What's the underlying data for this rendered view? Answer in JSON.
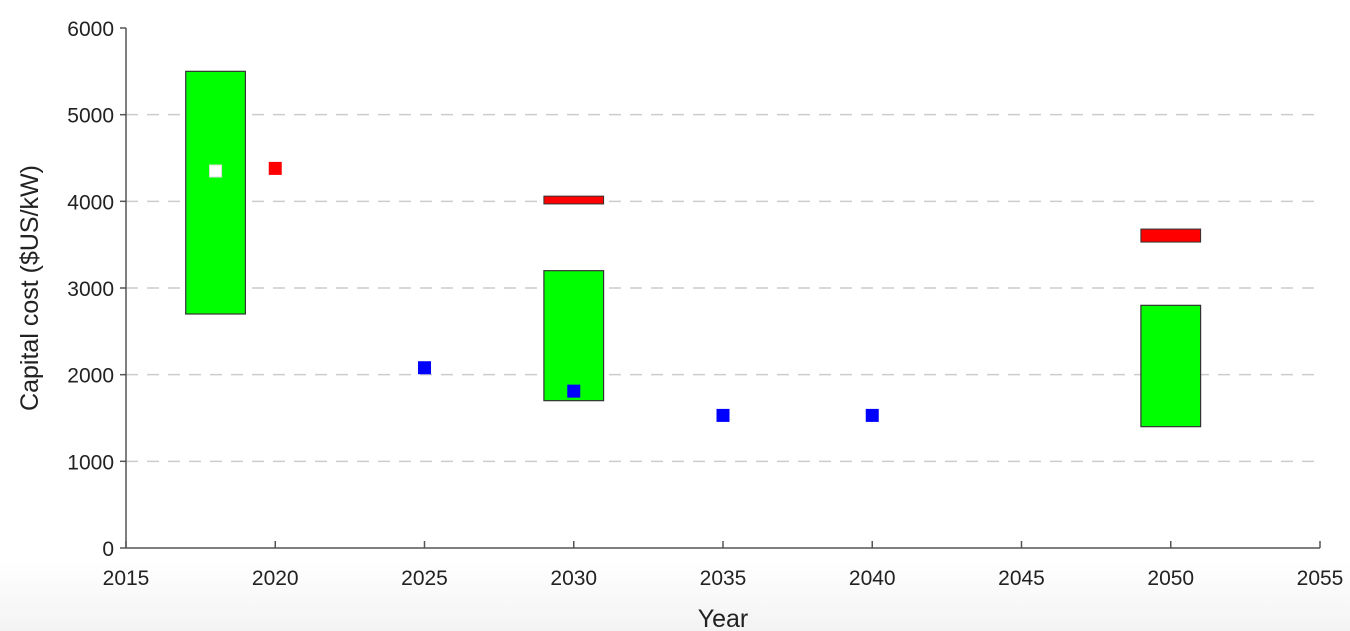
{
  "chart_data": {
    "type": "scatter",
    "title": "",
    "xlabel": "Year",
    "ylabel": "Capital cost ($US/kW)",
    "xlim": [
      2015,
      2055
    ],
    "ylim": [
      0,
      6000
    ],
    "x_ticks": [
      2015,
      2020,
      2025,
      2030,
      2035,
      2040,
      2045,
      2050,
      2055
    ],
    "y_ticks": [
      0,
      1000,
      2000,
      3000,
      4000,
      5000,
      6000
    ],
    "grid": "horizontal dashed",
    "colors": {
      "range_box": "#00ff00",
      "red_marker": "#ff0000",
      "blue_marker": "#0000ff",
      "white_marker": "#ffffff",
      "grid": "#cccccc",
      "axis": "#555555"
    },
    "range_boxes": [
      {
        "x_from": 2017,
        "x_to": 2019,
        "low": 2700,
        "high": 5500,
        "color": "#00ff00"
      },
      {
        "x_from": 2029,
        "x_to": 2031,
        "low": 1700,
        "high": 3200,
        "color": "#00ff00"
      },
      {
        "x_from": 2049,
        "x_to": 2051,
        "low": 1400,
        "high": 2800,
        "color": "#00ff00"
      }
    ],
    "red_bars": [
      {
        "x_from": 2029,
        "x_to": 2031,
        "low": 3970,
        "high": 4060,
        "color": "#ff0000"
      },
      {
        "x_from": 2049,
        "x_to": 2051,
        "low": 3530,
        "high": 3680,
        "color": "#ff0000"
      }
    ],
    "markers": [
      {
        "x": 2018,
        "y": 4350,
        "color": "#ffffff"
      },
      {
        "x": 2020,
        "y": 4380,
        "color": "#ff0000"
      },
      {
        "x": 2025,
        "y": 2080,
        "color": "#0000ff"
      },
      {
        "x": 2030,
        "y": 1810,
        "color": "#0000ff"
      },
      {
        "x": 2035,
        "y": 1530,
        "color": "#0000ff"
      },
      {
        "x": 2040,
        "y": 1530,
        "color": "#0000ff"
      }
    ]
  }
}
